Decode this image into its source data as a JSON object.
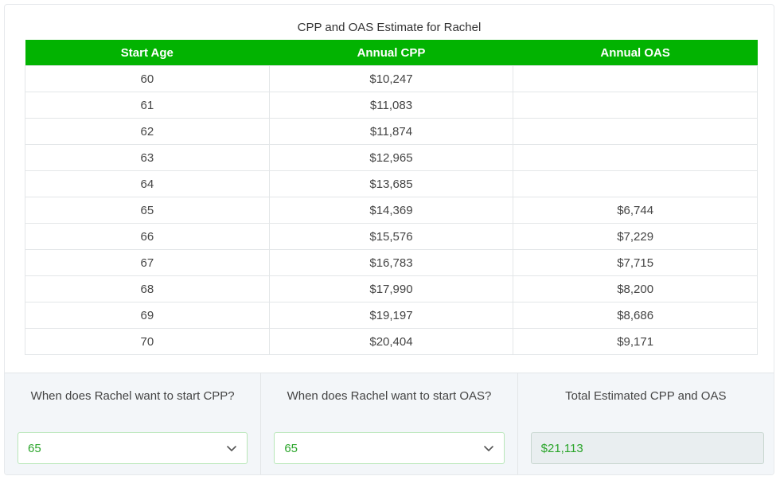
{
  "table": {
    "title": "CPP and OAS Estimate for Rachel",
    "headers": [
      "Start Age",
      "Annual CPP",
      "Annual OAS"
    ],
    "rows": [
      [
        "60",
        "$10,247",
        ""
      ],
      [
        "61",
        "$11,083",
        ""
      ],
      [
        "62",
        "$11,874",
        ""
      ],
      [
        "63",
        "$12,965",
        ""
      ],
      [
        "64",
        "$13,685",
        ""
      ],
      [
        "65",
        "$14,369",
        "$6,744"
      ],
      [
        "66",
        "$15,576",
        "$7,229"
      ],
      [
        "67",
        "$16,783",
        "$7,715"
      ],
      [
        "68",
        "$17,990",
        "$8,200"
      ],
      [
        "69",
        "$19,197",
        "$8,686"
      ],
      [
        "70",
        "$20,404",
        "$9,171"
      ]
    ]
  },
  "controls": {
    "cpp_label": "When does Rachel want to start CPP?",
    "cpp_value": "65",
    "oas_label": "When does Rachel want to start OAS?",
    "oas_value": "65",
    "total_label": "Total Estimated CPP and OAS",
    "total_value": "$21,113"
  },
  "colors": {
    "header_green": "#02b301",
    "value_green": "#2aa52a"
  }
}
